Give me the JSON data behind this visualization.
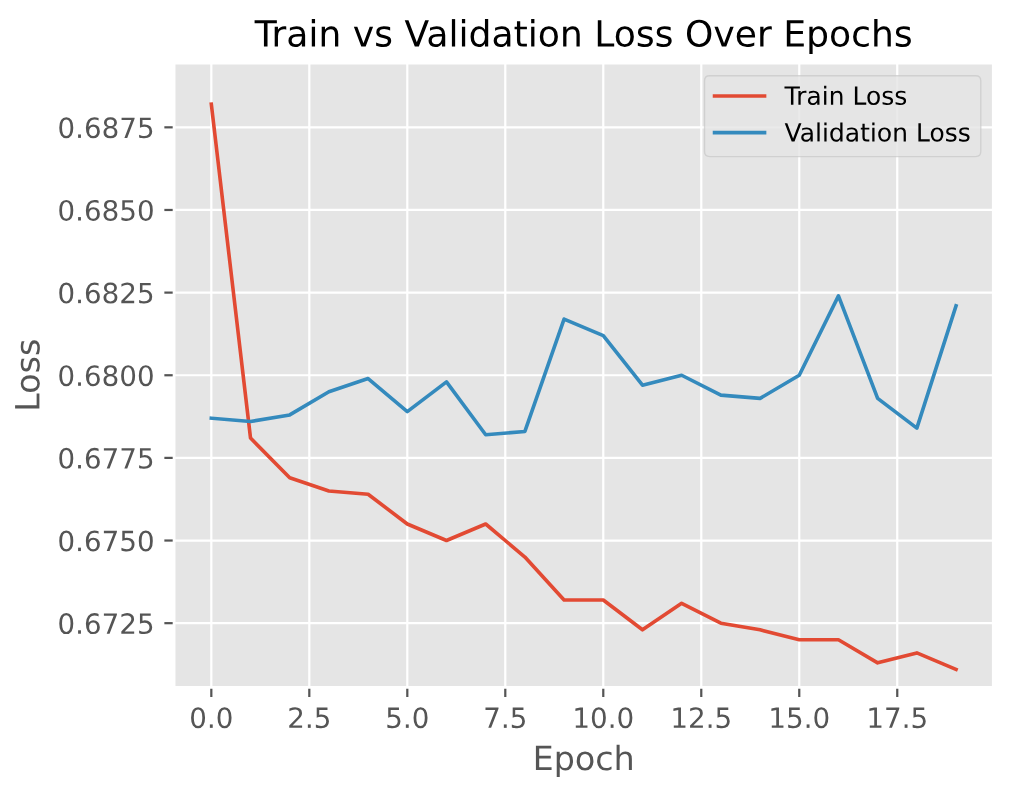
{
  "chart_data": {
    "type": "line",
    "title": "Train vs Validation Loss Over Epochs",
    "xlabel": "Epoch",
    "ylabel": "Loss",
    "x": [
      0,
      1,
      2,
      3,
      4,
      5,
      6,
      7,
      8,
      9,
      10,
      11,
      12,
      13,
      14,
      15,
      16,
      17,
      18,
      19
    ],
    "series": [
      {
        "name": "Train Loss",
        "color": "#e24a33",
        "values": [
          0.6882,
          0.6781,
          0.6769,
          0.6765,
          0.6764,
          0.6755,
          0.675,
          0.6755,
          0.6745,
          0.6732,
          0.6732,
          0.6723,
          0.6731,
          0.6725,
          0.6723,
          0.672,
          0.672,
          0.6713,
          0.6716,
          0.6711
        ]
      },
      {
        "name": "Validation Loss",
        "color": "#348abd",
        "values": [
          0.6787,
          0.6786,
          0.6788,
          0.6795,
          0.6799,
          0.6789,
          0.6798,
          0.6782,
          0.6783,
          0.6817,
          0.6812,
          0.6797,
          0.68,
          0.6794,
          0.6793,
          0.68,
          0.6824,
          0.6793,
          0.6784,
          0.6821
        ]
      }
    ],
    "xlim": [
      -0.95,
      19.95
    ],
    "xticks": [
      {
        "value": 0,
        "label": "0.0"
      },
      {
        "value": 2.5,
        "label": "2.5"
      },
      {
        "value": 5,
        "label": "5.0"
      },
      {
        "value": 7.5,
        "label": "7.5"
      },
      {
        "value": 10,
        "label": "10.0"
      },
      {
        "value": 12.5,
        "label": "12.5"
      },
      {
        "value": 15,
        "label": "15.0"
      },
      {
        "value": 17.5,
        "label": "17.5"
      }
    ],
    "ylim": [
      0.67056,
      0.68944
    ],
    "yticks": [
      {
        "value": 0.6725,
        "label": "0.6725"
      },
      {
        "value": 0.675,
        "label": "0.6750"
      },
      {
        "value": 0.6775,
        "label": "0.6775"
      },
      {
        "value": 0.68,
        "label": "0.6800"
      },
      {
        "value": 0.6825,
        "label": "0.6825"
      },
      {
        "value": 0.685,
        "label": "0.6850"
      },
      {
        "value": 0.6875,
        "label": "0.6875"
      }
    ],
    "grid": true,
    "legend": "upper right"
  }
}
